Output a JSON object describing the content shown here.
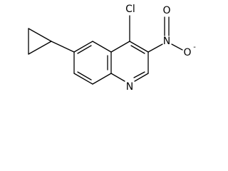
{
  "atoms": [
    {
      "label": "Cl"
    },
    {
      "label": "N"
    },
    {
      "label": "N"
    },
    {
      "label": "O"
    },
    {
      "label": "O",
      "charge": "-"
    }
  ]
}
